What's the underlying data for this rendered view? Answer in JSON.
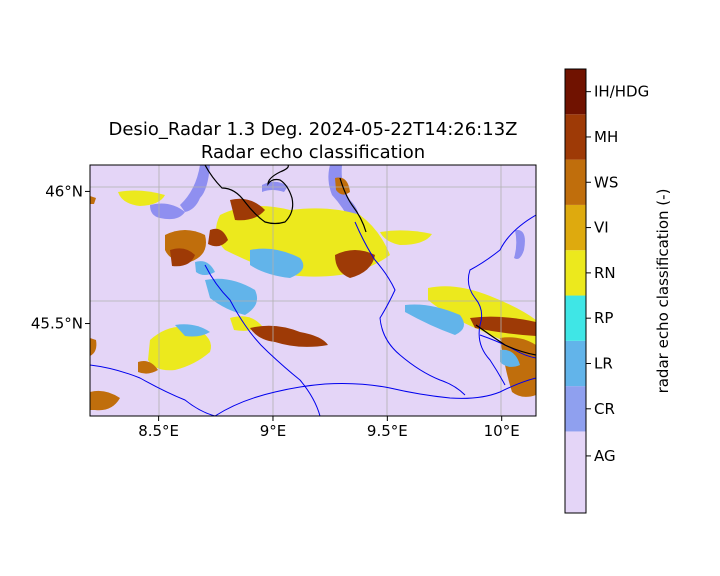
{
  "figure": {
    "title_line1": "Desio_Radar 1.3 Deg. 2024-05-22T14:26:13Z",
    "title_line2": "Radar echo classification"
  },
  "map": {
    "lon_range": [
      8.2,
      10.15
    ],
    "lat_range": [
      45.15,
      46.1
    ],
    "x_ticks": [
      {
        "value": 8.5,
        "label": "8.5°E"
      },
      {
        "value": 9.0,
        "label": "9°E"
      },
      {
        "value": 9.5,
        "label": "9.5°E"
      },
      {
        "value": 10.0,
        "label": "10°E"
      }
    ],
    "y_ticks": [
      {
        "value": 46.0,
        "label": "46°N"
      },
      {
        "value": 45.5,
        "label": "45.5°N"
      }
    ],
    "grid": true,
    "background_class": "AG",
    "lake_color": "#8f8ff0",
    "border_color": "#000000",
    "river_color": "#0000ee"
  },
  "colorbar": {
    "label": "radar echo classification (-)",
    "classes": [
      {
        "label": "AG",
        "color": "#e4d5f7"
      },
      {
        "label": "CR",
        "color": "#8fa0ef"
      },
      {
        "label": "LR",
        "color": "#62b4ea"
      },
      {
        "label": "RP",
        "color": "#3fe6e6"
      },
      {
        "label": "RN",
        "color": "#ece91d"
      },
      {
        "label": "VI",
        "color": "#deaa0e"
      },
      {
        "label": "WS",
        "color": "#c06e0c"
      },
      {
        "label": "MH",
        "color": "#9e3a06"
      },
      {
        "label": "IH/HDG",
        "color": "#701200"
      }
    ]
  },
  "chart_data": {
    "type": "heatmap",
    "title": "Desio_Radar 1.3 Deg. 2024-05-22T14:26:13Z\nRadar echo classification",
    "xlabel": "",
    "ylabel": "",
    "xlim": [
      8.2,
      10.15
    ],
    "ylim": [
      45.15,
      46.1
    ],
    "colorbar_label": "radar echo classification (-)",
    "categories": [
      "AG",
      "CR",
      "LR",
      "RP",
      "RN",
      "VI",
      "WS",
      "MH",
      "IH/HDG"
    ],
    "regions": [
      {
        "class": "RN",
        "lon": 8.95,
        "lat": 45.8
      },
      {
        "class": "RN",
        "lon": 9.25,
        "lat": 45.72
      },
      {
        "class": "WS",
        "lon": 9.3,
        "lat": 45.78
      },
      {
        "class": "MH",
        "lon": 8.6,
        "lat": 45.7
      },
      {
        "class": "MH",
        "lon": 9.4,
        "lat": 45.65
      },
      {
        "class": "LR",
        "lon": 8.75,
        "lat": 45.53
      },
      {
        "class": "RN",
        "lon": 8.6,
        "lat": 45.3
      },
      {
        "class": "RN",
        "lon": 9.85,
        "lat": 45.5
      },
      {
        "class": "WS",
        "lon": 10.1,
        "lat": 45.3
      },
      {
        "class": "WS",
        "lon": 8.3,
        "lat": 45.2
      }
    ]
  }
}
